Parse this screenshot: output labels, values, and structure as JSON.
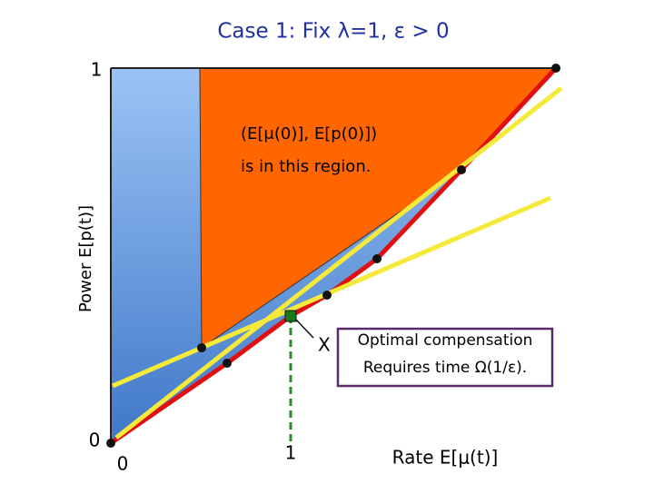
{
  "title": "Case 1: Fix λ=1, ε > 0",
  "axes": {
    "y_label": "Power E[p(t)]",
    "x_label": "Rate E[μ(t)]",
    "y_ticks": [
      "1",
      "0"
    ],
    "x_ticks": [
      "0",
      "1"
    ]
  },
  "region_note": [
    "(E[μ(0)], E[p(0)])",
    "is in this region."
  ],
  "point_label": "X",
  "callout": [
    "Optimal compensation",
    "Requires time Ω(1/ε)."
  ]
}
